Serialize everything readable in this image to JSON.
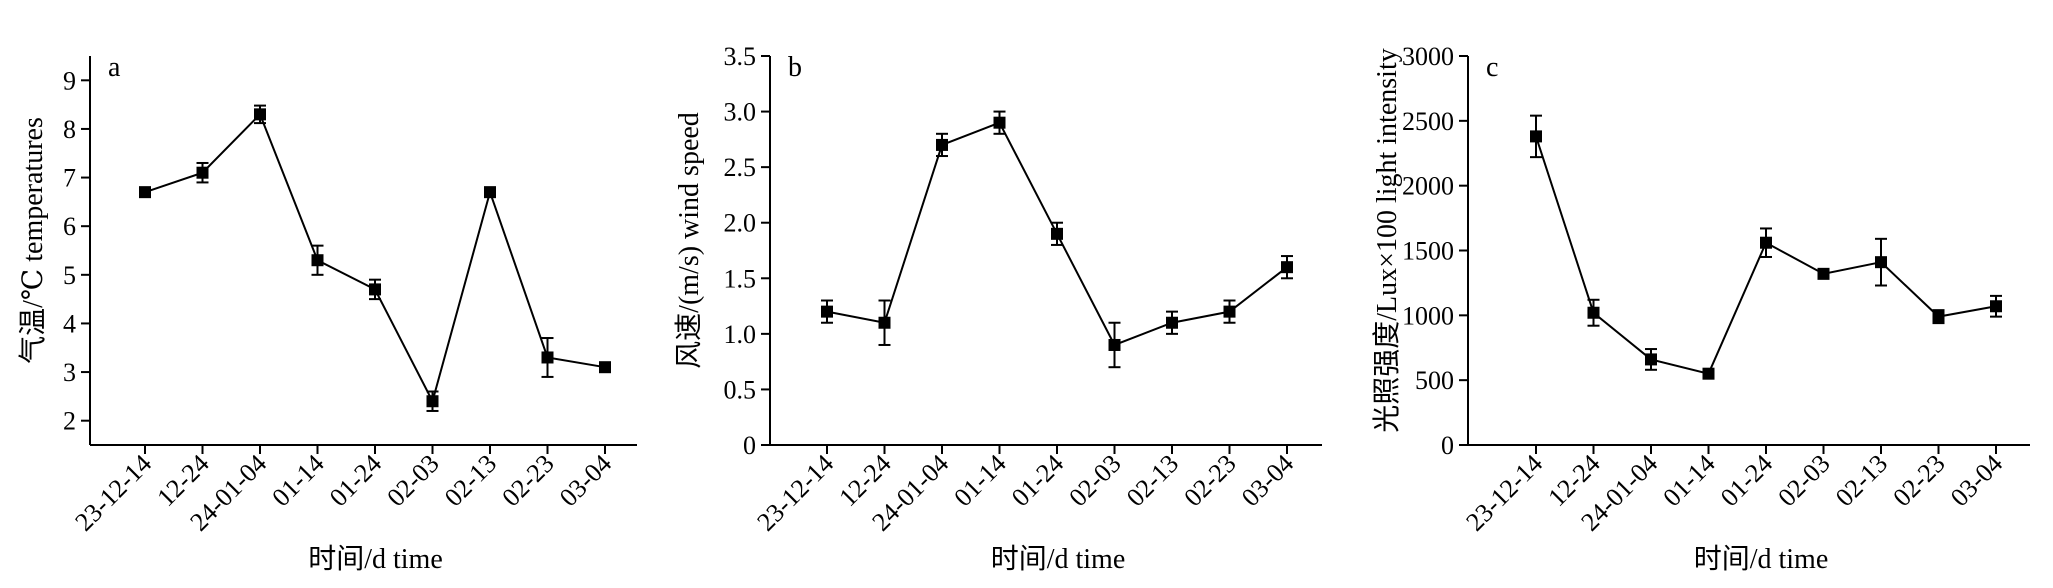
{
  "chart_data": [
    {
      "type": "line",
      "panel_label": "a",
      "categories": [
        "23-12-14",
        "12-24",
        "24-01-04",
        "01-14",
        "01-24",
        "02-03",
        "02-13",
        "02-23",
        "03-04"
      ],
      "values": [
        6.7,
        7.1,
        8.3,
        5.3,
        4.7,
        2.4,
        6.7,
        3.3,
        3.1
      ],
      "errors": [
        0.07,
        0.2,
        0.18,
        0.3,
        0.2,
        0.2,
        0.07,
        0.4,
        0.07
      ],
      "xlabel": "时间/d time",
      "ylabel": "气温/℃ temperatures",
      "ylim": [
        1.5,
        9.5
      ],
      "yticks": [
        2,
        3,
        4,
        5,
        6,
        7,
        8,
        9
      ],
      "grid": false,
      "legend": false
    },
    {
      "type": "line",
      "panel_label": "b",
      "categories": [
        "23-12-14",
        "12-24",
        "24-01-04",
        "01-14",
        "01-24",
        "02-03",
        "02-13",
        "02-23",
        "03-04"
      ],
      "values": [
        1.2,
        1.1,
        2.7,
        2.9,
        1.9,
        0.9,
        1.1,
        1.2,
        1.6
      ],
      "errors": [
        0.1,
        0.2,
        0.1,
        0.1,
        0.1,
        0.2,
        0.1,
        0.1,
        0.1
      ],
      "xlabel": "时间/d time",
      "ylabel": "风速/(m/s) wind speed",
      "ylim": [
        0,
        3.5
      ],
      "yticks": [
        "0",
        "0.5",
        "1.0",
        "1.5",
        "2.0",
        "2.5",
        "3.0",
        "3.5"
      ],
      "grid": false,
      "legend": false
    },
    {
      "type": "line",
      "panel_label": "c",
      "categories": [
        "23-12-14",
        "12-24",
        "24-01-04",
        "01-14",
        "01-24",
        "02-03",
        "02-13",
        "02-23",
        "03-04"
      ],
      "values": [
        2380,
        1020,
        660,
        550,
        1560,
        1320,
        1410,
        990,
        1070
      ],
      "errors": [
        160,
        100,
        80,
        30,
        110,
        30,
        180,
        50,
        80
      ],
      "xlabel": "时间/d time",
      "ylabel": "光照强度/Lux×100 light intensity",
      "ylim": [
        0,
        3000
      ],
      "yticks": [
        "0",
        "500",
        "1000",
        "1500",
        "2000",
        "2500",
        "3000"
      ],
      "grid": false,
      "legend": false
    }
  ]
}
